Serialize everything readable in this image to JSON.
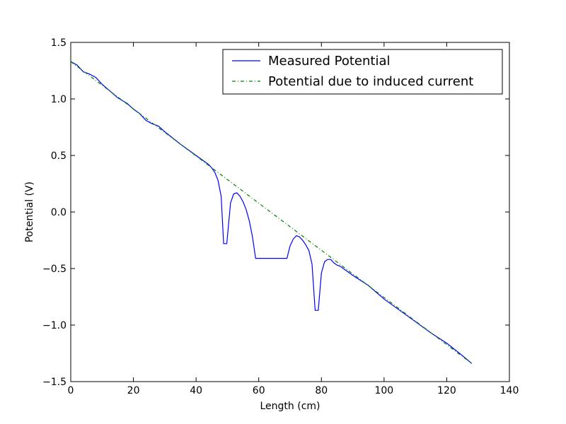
{
  "chart_data": {
    "type": "line",
    "title": "",
    "xlabel": "Length (cm)",
    "ylabel": "Potential (V)",
    "xlim": [
      0,
      140
    ],
    "ylim": [
      -1.5,
      1.5
    ],
    "xticks": [
      0,
      20,
      40,
      60,
      80,
      100,
      120,
      140
    ],
    "xtick_labels": [
      "0",
      "20",
      "40",
      "60",
      "80",
      "100",
      "120",
      "140"
    ],
    "yticks": [
      -1.5,
      -1.0,
      -0.5,
      0.0,
      0.5,
      1.0,
      1.5
    ],
    "ytick_labels": [
      "−1.5",
      "−1.0",
      "−0.5",
      "0.0",
      "0.5",
      "1.0",
      "1.5"
    ],
    "grid": false,
    "legend_position": "top-right",
    "series": [
      {
        "name": "Measured Potential",
        "color": "#0000ff",
        "style": "solid",
        "x": [
          0,
          2,
          4,
          6,
          8,
          10,
          15,
          18,
          20,
          22,
          24,
          26,
          28,
          30,
          35,
          40,
          42,
          44,
          45,
          46,
          47,
          48,
          48.8,
          49.8,
          51,
          52,
          53,
          54,
          55,
          56,
          57,
          58,
          59,
          60,
          65,
          69,
          70,
          71,
          72,
          73,
          74,
          75,
          76,
          77,
          78,
          79,
          80,
          81,
          82,
          83,
          84,
          85,
          86,
          90,
          95,
          100,
          105,
          110,
          115,
          120,
          125,
          128
        ],
        "values": [
          1.33,
          1.3,
          1.24,
          1.22,
          1.19,
          1.13,
          1.01,
          0.96,
          0.91,
          0.87,
          0.81,
          0.78,
          0.76,
          0.71,
          0.6,
          0.5,
          0.46,
          0.42,
          0.39,
          0.35,
          0.28,
          0.14,
          -0.28,
          -0.28,
          0.08,
          0.16,
          0.17,
          0.14,
          0.09,
          0.02,
          -0.08,
          -0.22,
          -0.41,
          -0.41,
          -0.41,
          -0.41,
          -0.3,
          -0.24,
          -0.21,
          -0.22,
          -0.25,
          -0.29,
          -0.34,
          -0.46,
          -0.87,
          -0.87,
          -0.54,
          -0.44,
          -0.42,
          -0.42,
          -0.45,
          -0.47,
          -0.48,
          -0.56,
          -0.65,
          -0.77,
          -0.87,
          -0.97,
          -1.07,
          -1.16,
          -1.27,
          -1.34
        ]
      },
      {
        "name": "Potential due to induced current",
        "color": "#008000",
        "style": "dashdot",
        "x": [
          0,
          128
        ],
        "values": [
          1.33,
          -1.34
        ]
      }
    ]
  }
}
